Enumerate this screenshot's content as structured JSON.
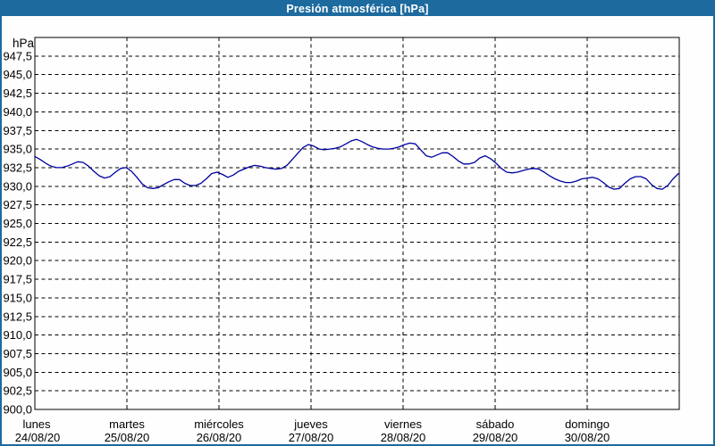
{
  "window": {
    "title": "Presión atmosférica [hPa]",
    "accent_color": "#1c6a9e",
    "background_color": "#fdfefd"
  },
  "chart_data": {
    "type": "line",
    "title": "Presión atmosférica [hPa]",
    "xlabel": "",
    "ylabel": "hPa",
    "ylim": [
      900,
      950
    ],
    "x_span_hours": 168,
    "grid": "dashed",
    "grid_color": "#000000",
    "legend": "none",
    "y_axis": {
      "unit_label": "hPa",
      "tick_values": [
        947.5,
        945.0,
        942.5,
        940.0,
        937.5,
        935.0,
        932.5,
        930.0,
        927.5,
        925.0,
        922.5,
        920.0,
        917.5,
        915.0,
        912.5,
        910.0,
        907.5,
        905.0,
        902.5,
        900.0
      ],
      "tick_labels": [
        "947,5",
        "945,0",
        "942,5",
        "940,0",
        "937,5",
        "935,0",
        "932,5",
        "930,0",
        "927,5",
        "925,0",
        "922,5",
        "920,0",
        "917,5",
        "915,0",
        "912,5",
        "910,0",
        "907,5",
        "905,0",
        "902,5",
        "900,0"
      ]
    },
    "x_axis": {
      "days": [
        {
          "name": "lunes",
          "date": "24/08/20"
        },
        {
          "name": "martes",
          "date": "25/08/20"
        },
        {
          "name": "miércoles",
          "date": "26/08/20"
        },
        {
          "name": "jueves",
          "date": "27/08/20"
        },
        {
          "name": "viernes",
          "date": "28/08/20"
        },
        {
          "name": "sábado",
          "date": "29/08/20"
        },
        {
          "name": "domingo",
          "date": "30/08/20"
        }
      ]
    },
    "series": [
      {
        "color": "#0000a0",
        "x_hours": [
          0,
          1.4,
          2.8,
          4.2,
          5.6,
          7,
          8.4,
          9.8,
          11.2,
          12.6,
          14,
          15.4,
          16.8,
          18.2,
          19.6,
          21,
          22.4,
          23.8,
          25.2,
          26.6,
          28,
          29.4,
          30.8,
          32.1,
          33.5,
          34.9,
          36.3,
          37.7,
          39.1,
          40.5,
          41.9,
          43.3,
          44.7,
          46.1,
          47.5,
          48.9,
          50.3,
          51.7,
          53.1,
          54.5,
          55.9,
          57.3,
          58.7,
          60.1,
          61.5,
          62.9,
          64.3,
          65.7,
          67.1,
          68.5,
          69.9,
          71.3,
          72.7,
          74.1,
          75.5,
          76.9,
          78.3,
          79.7,
          81.1,
          82.5,
          83.9,
          85.3,
          86.7,
          88,
          89.4,
          90.8,
          92.2,
          93.6,
          95,
          96.4,
          97.8,
          99.2,
          100.6,
          102,
          103.4,
          104.8,
          106.2,
          107.6,
          109,
          110.4,
          111.8,
          113.2,
          114.6,
          116,
          117.4,
          118.8,
          120.2,
          121.6,
          123,
          124.4,
          125.8,
          127.2,
          128.6,
          130,
          131.4,
          132.8,
          134.2,
          135.6,
          137,
          138.4,
          139.8,
          141.2,
          142.6,
          144,
          145.4,
          146.8,
          148.2,
          149.6,
          151,
          152.4,
          153.8,
          155.2,
          156.6,
          158,
          159.4,
          160.8,
          162.2,
          163.6,
          165,
          166.4,
          167.8
        ],
        "values": [
          934,
          933.6,
          933.1,
          932.7,
          932.5,
          932.5,
          932.7,
          933,
          933.3,
          933.2,
          932.7,
          932,
          931.4,
          931.1,
          931.3,
          931.9,
          932.4,
          932.5,
          932,
          931.2,
          930.3,
          929.8,
          929.7,
          929.8,
          930.2,
          930.6,
          930.9,
          930.9,
          930.4,
          930.1,
          930.1,
          930.4,
          931,
          931.7,
          931.9,
          931.6,
          931.2,
          931.5,
          932,
          932.3,
          932.6,
          932.8,
          932.7,
          932.5,
          932.4,
          932.3,
          932.4,
          932.8,
          933.6,
          934.4,
          935.2,
          935.6,
          935.4,
          935,
          934.9,
          935,
          935.1,
          935.3,
          935.7,
          936.1,
          936.3,
          936,
          935.6,
          935.3,
          935.1,
          935,
          935,
          935.1,
          935.3,
          935.6,
          935.8,
          935.7,
          934.9,
          934.1,
          933.9,
          934.2,
          934.5,
          934.5,
          934,
          933.4,
          933,
          933,
          933.2,
          933.8,
          934.1,
          933.7,
          933.1,
          932.4,
          931.9,
          931.8,
          931.9,
          932.1,
          932.3,
          932.4,
          932.3,
          931.9,
          931.4,
          931,
          930.7,
          930.5,
          930.5,
          930.7,
          931,
          931.1,
          931.2,
          931,
          930.5,
          929.9,
          929.6,
          929.7,
          930.4,
          931,
          931.3,
          931.3,
          931,
          930.2,
          929.7,
          929.6,
          930.1,
          931,
          931.7
        ]
      }
    ]
  }
}
